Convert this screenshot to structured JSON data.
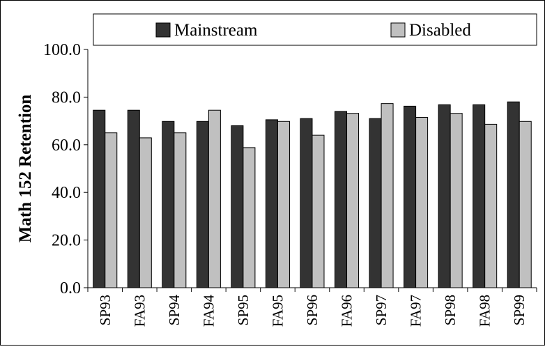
{
  "chart_data": {
    "type": "bar",
    "title": "",
    "xlabel": "",
    "ylabel": "Math 152 Retention",
    "ylim": [
      0,
      100
    ],
    "yticks": [
      "0.0",
      "20.0",
      "40.0",
      "60.0",
      "80.0",
      "100.0"
    ],
    "categories": [
      "SP93",
      "FA93",
      "SP94",
      "FA94",
      "SP95",
      "FA95",
      "SP96",
      "FA96",
      "SP97",
      "FA97",
      "SP98",
      "FA98",
      "SP99"
    ],
    "series": [
      {
        "name": "Mainstream",
        "color": "#333333",
        "values": [
          74.5,
          74.5,
          69.8,
          69.8,
          68.0,
          70.5,
          71.0,
          74.0,
          71.0,
          76.2,
          76.8,
          76.8,
          78.0
        ]
      },
      {
        "name": "Disabled",
        "color": "#c0c0c0",
        "values": [
          65.0,
          62.9,
          65.0,
          74.5,
          58.8,
          69.8,
          64.0,
          73.2,
          77.3,
          71.5,
          73.2,
          68.6,
          69.8
        ]
      }
    ],
    "legend_position": "top",
    "grid": false
  }
}
